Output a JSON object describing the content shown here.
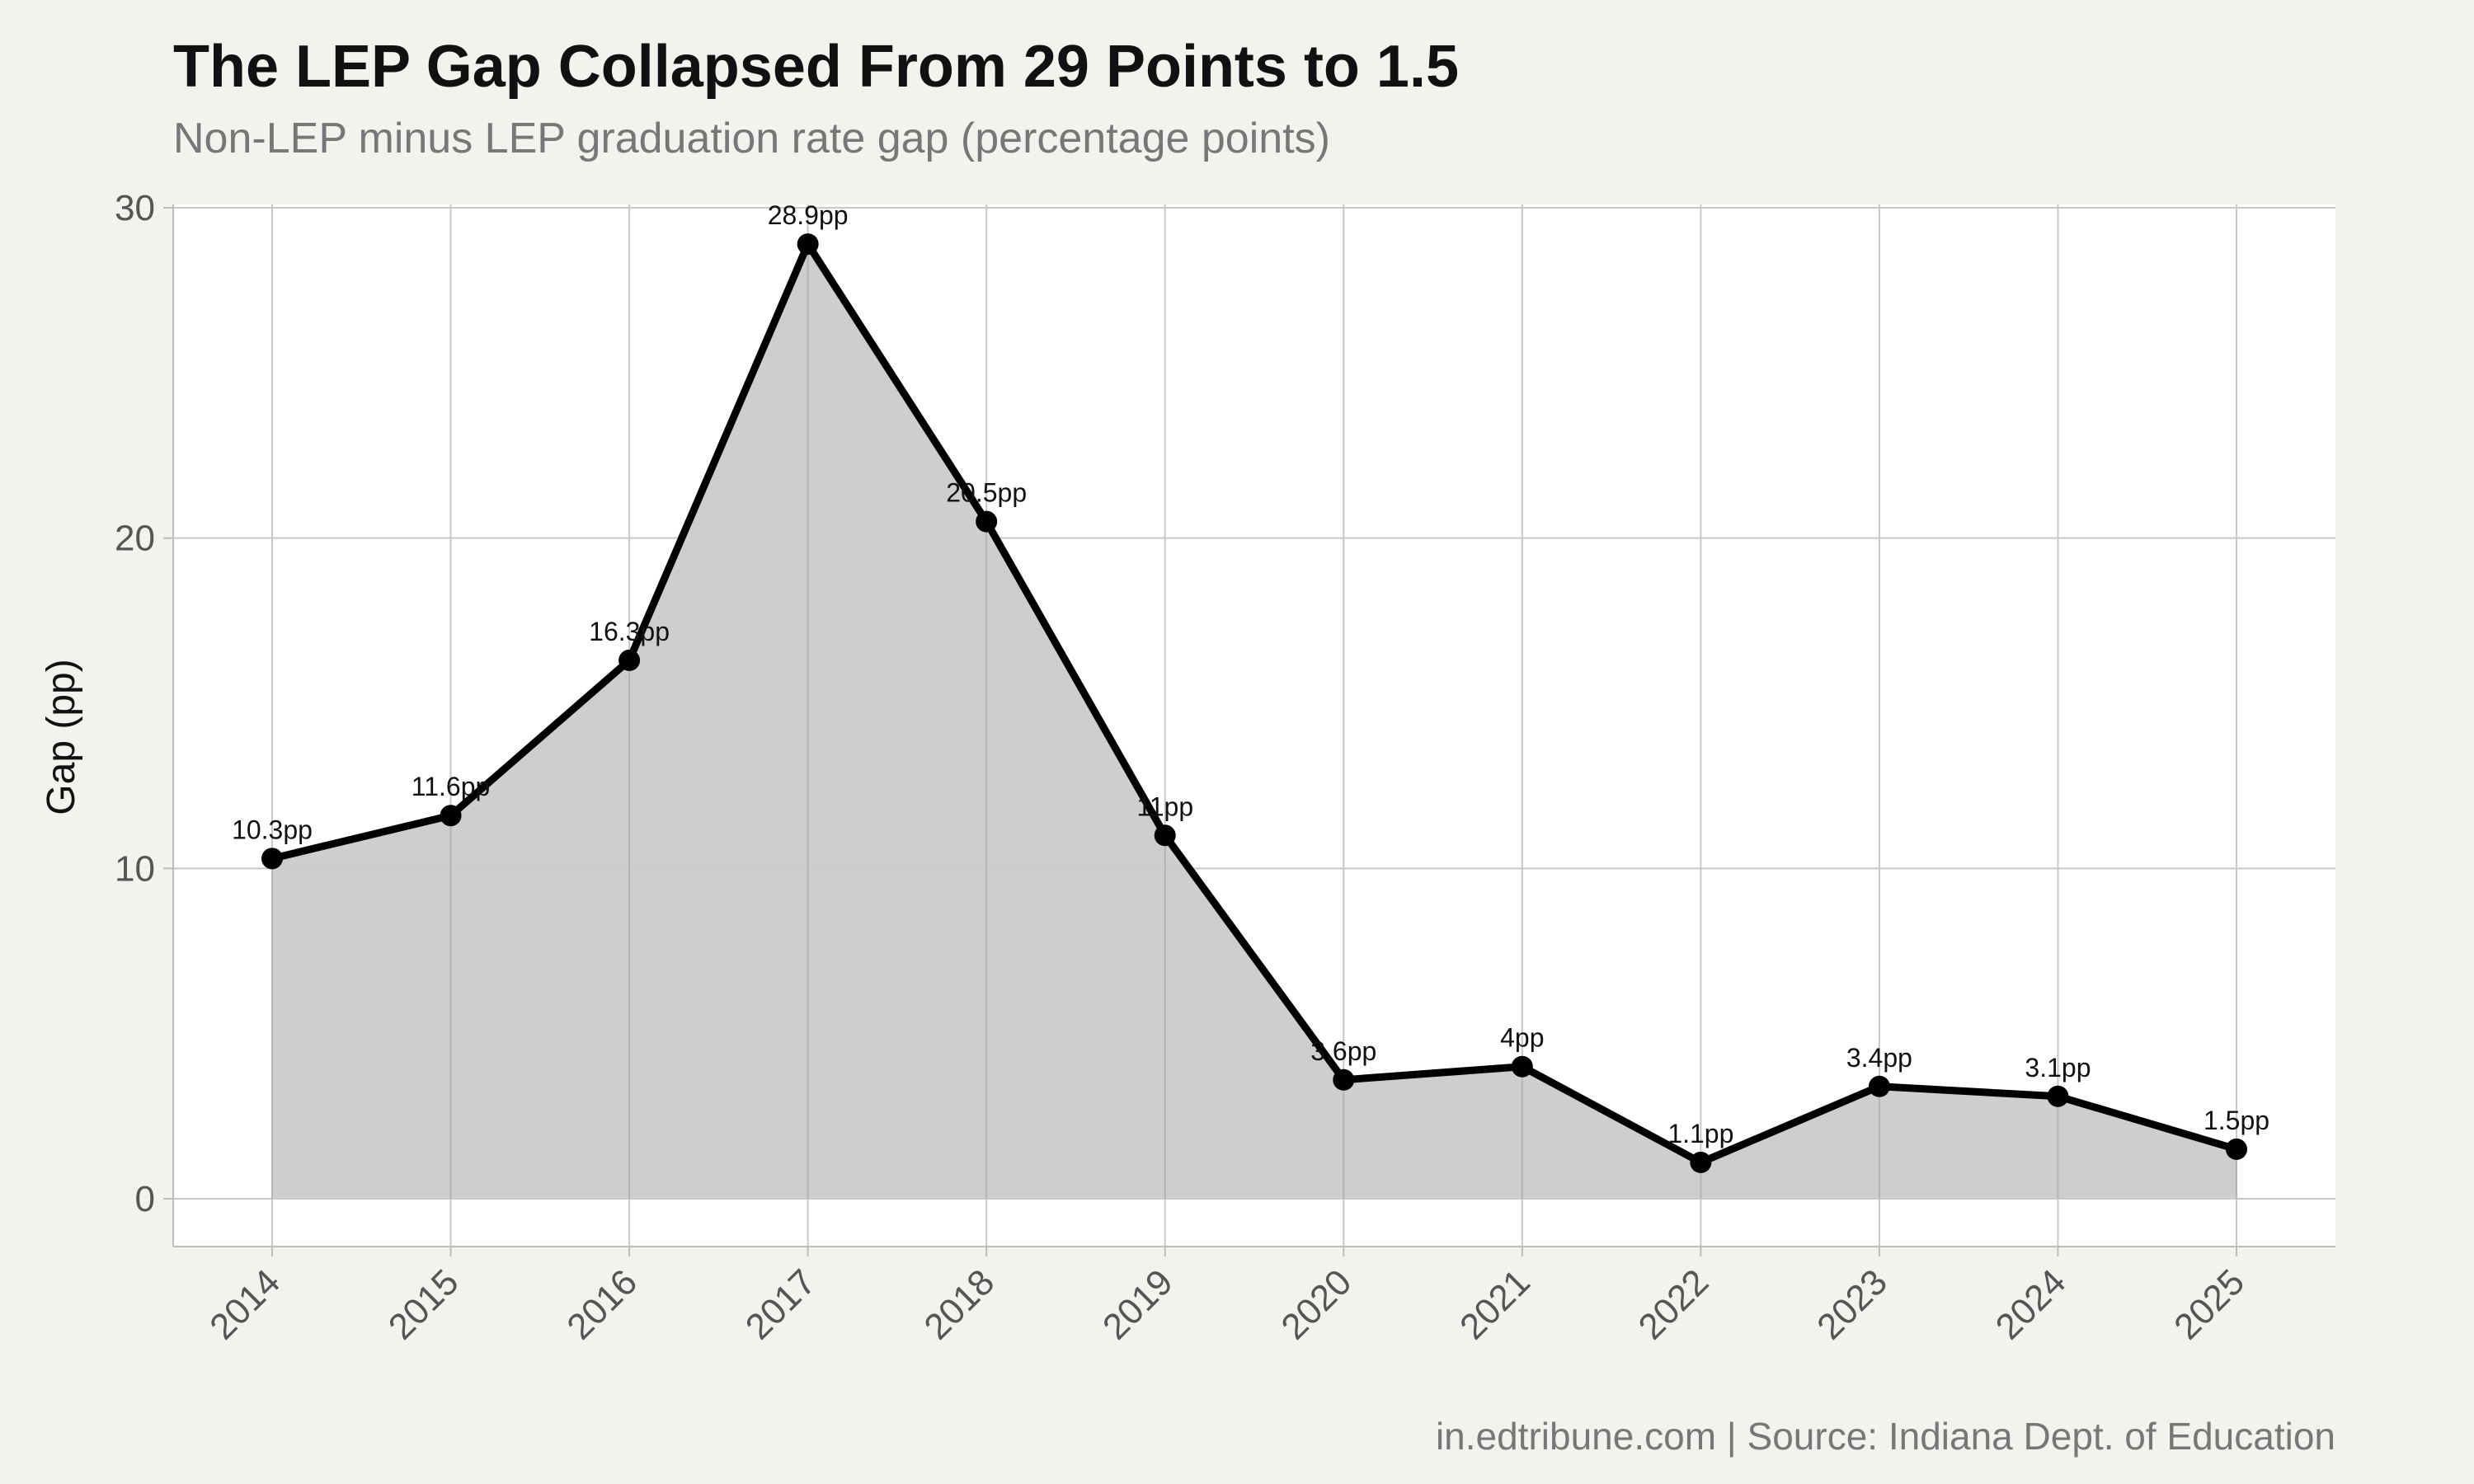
{
  "chart_data": {
    "type": "area",
    "title": "The LEP Gap Collapsed From 29 Points to 1.5",
    "subtitle": "Non-LEP minus LEP graduation rate gap (percentage points)",
    "xlabel": "",
    "ylabel": "Gap (pp)",
    "caption": "in.edtribune.com | Source: Indiana Dept. of Education",
    "categories": [
      "2014",
      "2015",
      "2016",
      "2017",
      "2018",
      "2019",
      "2020",
      "2021",
      "2022",
      "2023",
      "2024",
      "2025"
    ],
    "values": [
      10.3,
      11.6,
      16.3,
      28.9,
      20.5,
      11,
      3.6,
      4,
      1.1,
      3.4,
      3.1,
      1.5
    ],
    "data_labels": [
      "10.3pp",
      "11.6pp",
      "16.3pp",
      "28.9pp",
      "20.5pp",
      "11pp",
      "3.6pp",
      "4pp",
      "1.1pp",
      "3.4pp",
      "3.1pp",
      "1.5pp"
    ],
    "ylim": [
      0,
      30
    ],
    "yticks": [
      0,
      10,
      20,
      30
    ],
    "grid": true,
    "colors": {
      "line": "#000000",
      "fill": "#cbcbcb",
      "point": "#000000",
      "panel": "#ffffff",
      "background": "#f4f2ee",
      "grid": "#c8c8c8"
    }
  }
}
